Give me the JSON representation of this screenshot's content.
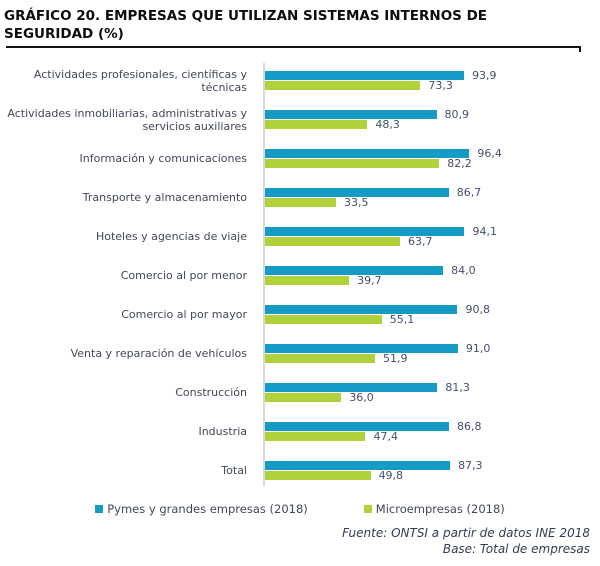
{
  "header": {
    "title": "GRÁFICO 20. EMPRESAS QUE UTILIZAN SISTEMAS INTERNOS DE SEGURIDAD (%)"
  },
  "chart_data": {
    "type": "bar",
    "orientation": "horizontal",
    "title": "GRÁFICO 20. EMPRESAS QUE UTILIZAN SISTEMAS INTERNOS DE SEGURIDAD (%)",
    "xlabel": "",
    "ylabel": "",
    "xlim": [
      0,
      100
    ],
    "grid": false,
    "legend_position": "bottom",
    "decimal_separator": ",",
    "categories": [
      "Actividades profesionales, científicas y técnicas",
      "Actividades inmobiliarias, administrativas y servicios auxiliares",
      "Información y comunicaciones",
      "Transporte y almacenamiento",
      "Hoteles y agencias de viaje",
      "Comercio al por menor",
      "Comercio al por mayor",
      "Venta y reparación de vehículos",
      "Construcción",
      "Industria",
      "Total"
    ],
    "series": [
      {
        "name": "Pymes y grandes empresas (2018)",
        "color": "#149CC7",
        "values": [
          93.9,
          80.9,
          96.4,
          86.7,
          94.1,
          84.0,
          90.8,
          91.0,
          81.3,
          86.8,
          87.3
        ]
      },
      {
        "name": "Microempresas (2018)",
        "color": "#B0D13A",
        "values": [
          73.3,
          48.3,
          82.2,
          33.5,
          63.7,
          39.7,
          55.1,
          51.9,
          36.0,
          47.4,
          49.8
        ]
      }
    ]
  },
  "footer": {
    "source": "Fuente: ONTSI a partir de datos INE 2018",
    "base": "Base: Total de empresas"
  }
}
